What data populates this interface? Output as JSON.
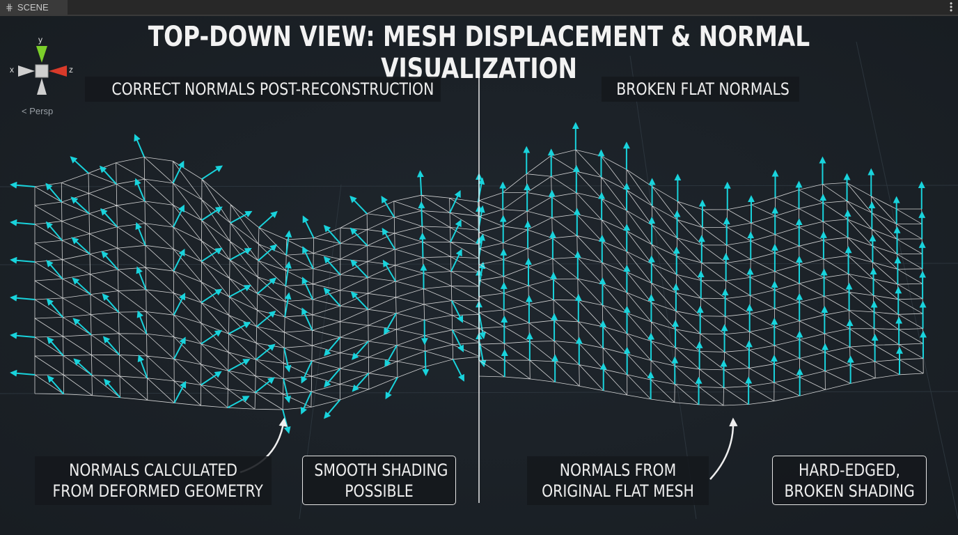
{
  "tab": {
    "icon": "grid-hash-icon",
    "label": "SCENE"
  },
  "menu": {
    "icon": "kebab-menu-icon"
  },
  "gizmo": {
    "x": "x",
    "y": "y",
    "z": "z",
    "projection": "Persp",
    "colors": {
      "y": "#7ccf2a",
      "z": "#d83a2a",
      "x": "#cfcfcf"
    }
  },
  "title": "TOP-DOWN VIEW: MESH DISPLACEMENT & NORMAL VISUALIZATION",
  "left_panel": {
    "heading": "CORRECT NORMALS POST-RECONSTRUCTION",
    "callout": [
      "NORMALS CALCULATED",
      "FROM DEFORMED GEOMETRY"
    ],
    "result": [
      "SMOOTH SHADING",
      "POSSIBLE"
    ]
  },
  "right_panel": {
    "heading": "BROKEN FLAT NORMALS",
    "callout": [
      "NORMALS FROM",
      "ORIGINAL FLAT MESH"
    ],
    "result": [
      "HARD-EDGED,",
      "BROKEN SHADING"
    ]
  },
  "colors": {
    "normals": "#19d3dc",
    "wireframe": "#e8e8e8",
    "background": "#1b2127"
  }
}
